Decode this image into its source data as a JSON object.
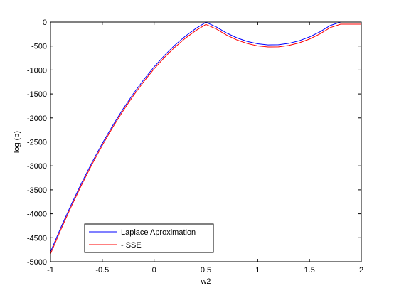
{
  "chart_data": {
    "type": "line",
    "xlabel": "w2",
    "ylabel": "log (p)",
    "xlim": [
      -1,
      2
    ],
    "ylim": [
      -5000,
      0
    ],
    "xticks": [
      -1,
      -0.5,
      0,
      0.5,
      1,
      1.5,
      2
    ],
    "yticks": [
      0,
      -500,
      -1000,
      -1500,
      -2000,
      -2500,
      -3000,
      -3500,
      -4000,
      -4500,
      -5000
    ],
    "grid": false,
    "legend_position": "bottom-left",
    "series": [
      {
        "name": "Laplace Aproximation",
        "color": "#0000ff",
        "x": [
          -1,
          -0.9,
          -0.8,
          -0.7,
          -0.6,
          -0.5,
          -0.4,
          -0.3,
          -0.2,
          -0.1,
          0,
          0.1,
          0.2,
          0.3,
          0.4,
          0.5,
          0.6,
          0.7,
          0.8,
          0.9,
          1,
          1.1,
          1.2,
          1.3,
          1.4,
          1.5,
          1.6,
          1.7,
          1.8,
          1.9,
          2
        ],
        "y": [
          -4792,
          -4287,
          -3808,
          -3356,
          -2931,
          -2532,
          -2160,
          -1814,
          -1495,
          -1202,
          -936,
          -696,
          -483,
          -297,
          -138,
          -5,
          -101,
          -228,
          -330,
          -404,
          -453,
          -476,
          -473,
          -444,
          -390,
          -310,
          -204,
          -72,
          0,
          0,
          0
        ]
      },
      {
        "name": "- SSE",
        "color": "#ff0000",
        "x": [
          -1,
          -0.9,
          -0.8,
          -0.7,
          -0.6,
          -0.5,
          -0.4,
          -0.3,
          -0.2,
          -0.1,
          0,
          0.1,
          0.2,
          0.3,
          0.4,
          0.5,
          0.6,
          0.7,
          0.8,
          0.9,
          1,
          1.1,
          1.2,
          1.3,
          1.4,
          1.5,
          1.6,
          1.7,
          1.8,
          1.9,
          2
        ],
        "y": [
          -4838,
          -4331,
          -3851,
          -3398,
          -2972,
          -2573,
          -2200,
          -1854,
          -1535,
          -1243,
          -977,
          -738,
          -526,
          -340,
          -181,
          -49,
          -144,
          -271,
          -373,
          -448,
          -497,
          -520,
          -517,
          -488,
          -434,
          -354,
          -248,
          -116,
          -44,
          -44,
          -44
        ]
      }
    ]
  }
}
